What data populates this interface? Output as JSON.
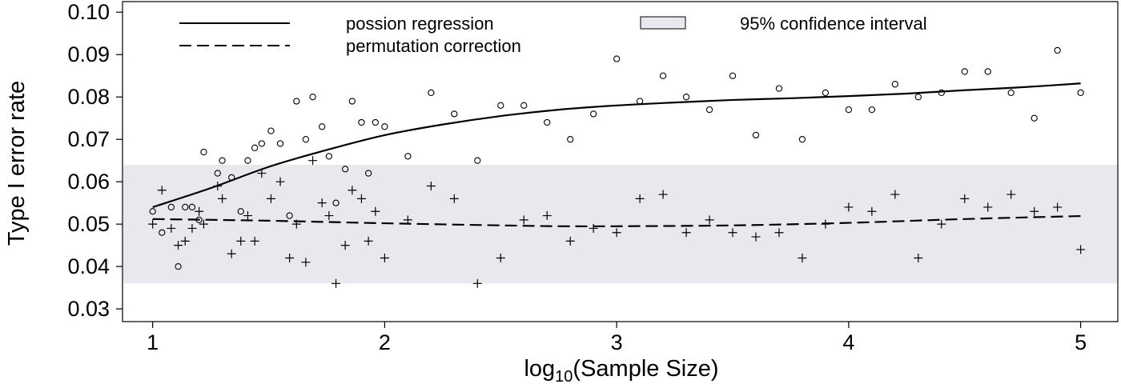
{
  "chart_data": {
    "type": "scatter",
    "title": "",
    "xlabel": "log10(Sample Size)",
    "xlabel_main": "log",
    "xlabel_sub": "10",
    "xlabel_rest": "(Sample Size)",
    "ylabel": "Type I error rate",
    "xlim": [
      0.87,
      5.16
    ],
    "ylim": [
      0.027,
      0.1025
    ],
    "xticks": [
      1,
      2,
      3,
      4,
      5
    ],
    "xtick_labels": [
      "1",
      "2",
      "3",
      "4",
      "5"
    ],
    "yticks": [
      0.03,
      0.04,
      0.05,
      0.06,
      0.07,
      0.08,
      0.09,
      0.1
    ],
    "ytick_labels": [
      "0.03",
      "0.04",
      "0.05",
      "0.06",
      "0.07",
      "0.08",
      "0.09",
      "0.10"
    ],
    "grid": false,
    "legend_position": "top",
    "confidence_band": {
      "label": "95% confidence interval",
      "lower": 0.036,
      "upper": 0.064,
      "color": "#e8e8ee"
    },
    "series": [
      {
        "name": "possion regression",
        "marker": "circle",
        "line_style": "solid",
        "points": [
          [
            1.0,
            0.053
          ],
          [
            1.04,
            0.048
          ],
          [
            1.08,
            0.054
          ],
          [
            1.11,
            0.04
          ],
          [
            1.14,
            0.054
          ],
          [
            1.17,
            0.054
          ],
          [
            1.2,
            0.051
          ],
          [
            1.22,
            0.067
          ],
          [
            1.28,
            0.062
          ],
          [
            1.3,
            0.065
          ],
          [
            1.34,
            0.061
          ],
          [
            1.38,
            0.053
          ],
          [
            1.41,
            0.065
          ],
          [
            1.44,
            0.068
          ],
          [
            1.47,
            0.069
          ],
          [
            1.51,
            0.072
          ],
          [
            1.55,
            0.069
          ],
          [
            1.59,
            0.052
          ],
          [
            1.62,
            0.079
          ],
          [
            1.66,
            0.07
          ],
          [
            1.69,
            0.08
          ],
          [
            1.73,
            0.073
          ],
          [
            1.76,
            0.066
          ],
          [
            1.79,
            0.055
          ],
          [
            1.83,
            0.063
          ],
          [
            1.86,
            0.079
          ],
          [
            1.9,
            0.074
          ],
          [
            1.93,
            0.062
          ],
          [
            1.96,
            0.074
          ],
          [
            2.0,
            0.073
          ],
          [
            2.1,
            0.066
          ],
          [
            2.2,
            0.081
          ],
          [
            2.3,
            0.076
          ],
          [
            2.4,
            0.065
          ],
          [
            2.5,
            0.078
          ],
          [
            2.6,
            0.078
          ],
          [
            2.7,
            0.074
          ],
          [
            2.8,
            0.07
          ],
          [
            2.9,
            0.076
          ],
          [
            3.0,
            0.089
          ],
          [
            3.1,
            0.079
          ],
          [
            3.2,
            0.085
          ],
          [
            3.3,
            0.08
          ],
          [
            3.4,
            0.077
          ],
          [
            3.5,
            0.085
          ],
          [
            3.6,
            0.071
          ],
          [
            3.7,
            0.082
          ],
          [
            3.8,
            0.07
          ],
          [
            3.9,
            0.081
          ],
          [
            4.0,
            0.077
          ],
          [
            4.1,
            0.077
          ],
          [
            4.2,
            0.083
          ],
          [
            4.3,
            0.08
          ],
          [
            4.4,
            0.081
          ],
          [
            4.5,
            0.086
          ],
          [
            4.6,
            0.086
          ],
          [
            4.7,
            0.081
          ],
          [
            4.8,
            0.075
          ],
          [
            4.9,
            0.091
          ],
          [
            5.0,
            0.081
          ]
        ],
        "fit": [
          [
            1.0,
            0.054
          ],
          [
            1.25,
            0.0585
          ],
          [
            1.5,
            0.0635
          ],
          [
            1.75,
            0.0675
          ],
          [
            2.0,
            0.071
          ],
          [
            2.25,
            0.0735
          ],
          [
            2.5,
            0.0755
          ],
          [
            2.75,
            0.077
          ],
          [
            3.0,
            0.078
          ],
          [
            3.25,
            0.0787
          ],
          [
            3.5,
            0.0793
          ],
          [
            3.75,
            0.0797
          ],
          [
            4.0,
            0.0802
          ],
          [
            4.25,
            0.0808
          ],
          [
            4.5,
            0.0816
          ],
          [
            4.75,
            0.0823
          ],
          [
            5.0,
            0.0832
          ]
        ]
      },
      {
        "name": "permutation correction",
        "marker": "plus",
        "line_style": "dashed",
        "points": [
          [
            1.0,
            0.05
          ],
          [
            1.04,
            0.058
          ],
          [
            1.08,
            0.049
          ],
          [
            1.11,
            0.045
          ],
          [
            1.14,
            0.046
          ],
          [
            1.17,
            0.049
          ],
          [
            1.2,
            0.053
          ],
          [
            1.22,
            0.05
          ],
          [
            1.28,
            0.059
          ],
          [
            1.3,
            0.056
          ],
          [
            1.34,
            0.043
          ],
          [
            1.38,
            0.046
          ],
          [
            1.41,
            0.052
          ],
          [
            1.44,
            0.046
          ],
          [
            1.47,
            0.062
          ],
          [
            1.51,
            0.056
          ],
          [
            1.55,
            0.06
          ],
          [
            1.59,
            0.042
          ],
          [
            1.62,
            0.05
          ],
          [
            1.66,
            0.041
          ],
          [
            1.69,
            0.065
          ],
          [
            1.73,
            0.055
          ],
          [
            1.76,
            0.052
          ],
          [
            1.79,
            0.036
          ],
          [
            1.83,
            0.045
          ],
          [
            1.86,
            0.058
          ],
          [
            1.9,
            0.056
          ],
          [
            1.93,
            0.046
          ],
          [
            1.96,
            0.053
          ],
          [
            2.0,
            0.042
          ],
          [
            2.1,
            0.051
          ],
          [
            2.2,
            0.059
          ],
          [
            2.3,
            0.056
          ],
          [
            2.4,
            0.036
          ],
          [
            2.5,
            0.042
          ],
          [
            2.6,
            0.051
          ],
          [
            2.7,
            0.052
          ],
          [
            2.8,
            0.046
          ],
          [
            2.9,
            0.049
          ],
          [
            3.0,
            0.048
          ],
          [
            3.1,
            0.056
          ],
          [
            3.2,
            0.057
          ],
          [
            3.3,
            0.048
          ],
          [
            3.4,
            0.051
          ],
          [
            3.5,
            0.048
          ],
          [
            3.6,
            0.047
          ],
          [
            3.7,
            0.048
          ],
          [
            3.8,
            0.042
          ],
          [
            3.9,
            0.05
          ],
          [
            4.0,
            0.054
          ],
          [
            4.1,
            0.053
          ],
          [
            4.2,
            0.057
          ],
          [
            4.3,
            0.042
          ],
          [
            4.4,
            0.05
          ],
          [
            4.5,
            0.056
          ],
          [
            4.6,
            0.054
          ],
          [
            4.7,
            0.057
          ],
          [
            4.8,
            0.053
          ],
          [
            4.9,
            0.054
          ],
          [
            5.0,
            0.044
          ]
        ],
        "fit": [
          [
            1.0,
            0.0512
          ],
          [
            1.5,
            0.0508
          ],
          [
            2.0,
            0.0502
          ],
          [
            2.5,
            0.0497
          ],
          [
            2.75,
            0.0495
          ],
          [
            3.0,
            0.0495
          ],
          [
            3.5,
            0.0497
          ],
          [
            4.0,
            0.0503
          ],
          [
            4.5,
            0.0512
          ],
          [
            5.0,
            0.0519
          ]
        ]
      }
    ]
  }
}
